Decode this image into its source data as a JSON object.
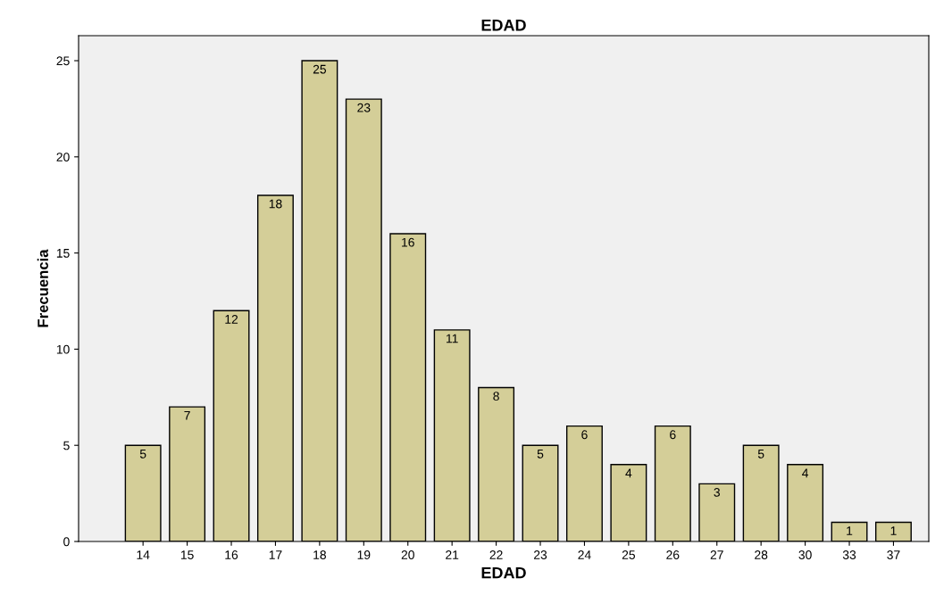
{
  "chart_data": {
    "type": "bar",
    "title": "EDAD",
    "xlabel": "EDAD",
    "ylabel": "Frecuencia",
    "categories": [
      "14",
      "15",
      "16",
      "17",
      "18",
      "19",
      "20",
      "21",
      "22",
      "23",
      "24",
      "25",
      "26",
      "27",
      "28",
      "30",
      "33",
      "37"
    ],
    "values": [
      5,
      7,
      12,
      18,
      25,
      23,
      16,
      11,
      8,
      5,
      6,
      4,
      6,
      3,
      5,
      4,
      1,
      1
    ],
    "color": "#d4ce98",
    "ylim": [
      0,
      26.3
    ],
    "yticks": [
      0,
      5,
      10,
      15,
      20,
      25
    ],
    "grid": false,
    "data_labels": true
  }
}
